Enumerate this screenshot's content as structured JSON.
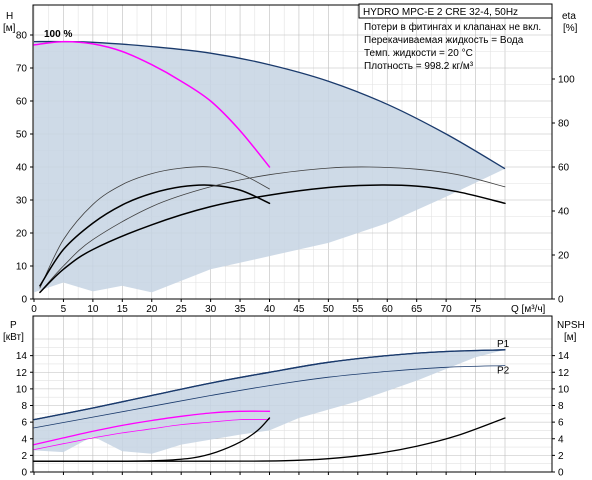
{
  "chart_data": [
    {
      "type": "line",
      "panel": "pump-curves",
      "title_box": "HYDRO MPC-E 2 CRE 32-4, 50Hz",
      "notes": [
        "Потери в фитингах и клапанах не вкл.",
        "Перекачиваемая жидкость = Вода",
        "Темп. жидкости = 20 °C",
        "Плотность = 998.2 кг/м³"
      ],
      "x_axis_label": "Q [м³/ч]",
      "x_ticks": [
        "0",
        "5",
        "10",
        "15",
        "20",
        "25",
        "30",
        "35",
        "40",
        "45",
        "50",
        "55",
        "60",
        "65",
        "70",
        "75"
      ],
      "xlim": [
        0,
        80
      ],
      "y_left": {
        "label_top": "H",
        "label_unit": "[м]",
        "ticks": [
          "0",
          "10",
          "20",
          "30",
          "40",
          "50",
          "60",
          "70",
          "80"
        ],
        "lim": [
          0,
          80
        ]
      },
      "y_right": {
        "label_top": "eta",
        "label_unit": "[%]",
        "ticks": [
          "0",
          "20",
          "40",
          "60",
          "80",
          "100"
        ],
        "lim": [
          0,
          120
        ]
      },
      "annotation_100": "100 %",
      "area_upper": [
        [
          0,
          78
        ],
        [
          5,
          78
        ],
        [
          10,
          77.8
        ],
        [
          20,
          76.5
        ],
        [
          30,
          74.5
        ],
        [
          40,
          71
        ],
        [
          50,
          66
        ],
        [
          60,
          59
        ],
        [
          70,
          50
        ],
        [
          80,
          39.5
        ]
      ],
      "area_lower": [
        [
          0,
          2
        ],
        [
          5,
          5
        ],
        [
          10,
          2.3
        ],
        [
          15,
          4
        ],
        [
          20,
          2
        ],
        [
          30,
          9
        ],
        [
          40,
          13
        ],
        [
          50,
          17
        ],
        [
          60,
          23
        ],
        [
          70,
          31
        ],
        [
          80,
          39.5
        ]
      ],
      "series": [
        {
          "id": "h-single-max",
          "color": "#ff00ff",
          "width": 1.5,
          "points": [
            [
              0,
              77
            ],
            [
              5,
              78
            ],
            [
              10,
              77.3
            ],
            [
              15,
              75
            ],
            [
              20,
              71
            ],
            [
              25,
              66
            ],
            [
              30,
              60
            ],
            [
              35,
              51
            ],
            [
              40,
              40
            ]
          ]
        },
        {
          "id": "eta-single",
          "color": "#404040",
          "width": 0.8,
          "axis": "right",
          "points": [
            [
              1,
              5
            ],
            [
              5,
              27
            ],
            [
              10,
              43
            ],
            [
              15,
              52
            ],
            [
              20,
              57
            ],
            [
              25,
              59.5
            ],
            [
              30,
              60
            ],
            [
              35,
              57
            ],
            [
              40,
              50
            ]
          ]
        },
        {
          "id": "h-single-op",
          "color": "#000000",
          "width": 1.5,
          "points": [
            [
              1,
              4
            ],
            [
              5,
              15
            ],
            [
              10,
              23
            ],
            [
              15,
              28.5
            ],
            [
              20,
              32
            ],
            [
              25,
              34
            ],
            [
              30,
              34.5
            ],
            [
              35,
              33
            ],
            [
              40,
              29
            ]
          ]
        },
        {
          "id": "eta-system",
          "color": "#404040",
          "width": 0.8,
          "axis": "right",
          "points": [
            [
              1,
              3
            ],
            [
              5,
              15
            ],
            [
              10,
              27
            ],
            [
              20,
              42
            ],
            [
              30,
              51
            ],
            [
              40,
              56.5
            ],
            [
              50,
              59.5
            ],
            [
              57,
              60
            ],
            [
              65,
              59
            ],
            [
              72,
              56.5
            ],
            [
              80,
              51
            ]
          ]
        },
        {
          "id": "h-system-op",
          "color": "#000000",
          "width": 1.5,
          "points": [
            [
              1,
              2
            ],
            [
              5,
              9
            ],
            [
              10,
              15
            ],
            [
              20,
              22.5
            ],
            [
              30,
              28
            ],
            [
              40,
              31.5
            ],
            [
              50,
              33.8
            ],
            [
              57,
              34.5
            ],
            [
              65,
              34.2
            ],
            [
              72,
              32.5
            ],
            [
              80,
              29
            ]
          ]
        }
      ]
    },
    {
      "type": "line",
      "panel": "power-npsh",
      "y_left": {
        "label_top": "P",
        "label_unit": "[кВт]",
        "ticks": [
          "0",
          "2",
          "4",
          "6",
          "8",
          "10",
          "12",
          "14"
        ],
        "lim": [
          0,
          16
        ]
      },
      "y_right": {
        "label_top": "NPSH",
        "label_unit": "[м]",
        "ticks": [
          "0",
          "2",
          "4",
          "6",
          "8",
          "10",
          "12",
          "14"
        ],
        "lim": [
          0,
          16
        ]
      },
      "area_upper": [
        [
          0,
          6.3
        ],
        [
          10,
          7.7
        ],
        [
          20,
          9.2
        ],
        [
          30,
          10.7
        ],
        [
          40,
          12
        ],
        [
          50,
          13.2
        ],
        [
          60,
          14
        ],
        [
          70,
          14.5
        ],
        [
          80,
          14.7
        ]
      ],
      "area_lower": [
        [
          0,
          2.6
        ],
        [
          5,
          2.4
        ],
        [
          10,
          4.3
        ],
        [
          15,
          2.5
        ],
        [
          20,
          2.2
        ],
        [
          25,
          3.3
        ],
        [
          35,
          4.5
        ],
        [
          40,
          5
        ],
        [
          45,
          6.5
        ],
        [
          55,
          8.5
        ],
        [
          65,
          11
        ],
        [
          75,
          13.8
        ],
        [
          80,
          14.7
        ]
      ],
      "series": [
        {
          "id": "p1",
          "label": "P1",
          "color": "#1a3a6c",
          "width": 1.3,
          "points": [
            [
              0,
              6.3
            ],
            [
              10,
              7.7
            ],
            [
              20,
              9.2
            ],
            [
              30,
              10.7
            ],
            [
              40,
              12
            ],
            [
              50,
              13.2
            ],
            [
              60,
              14
            ],
            [
              70,
              14.5
            ],
            [
              80,
              14.7
            ]
          ]
        },
        {
          "id": "p2",
          "label": "P2",
          "color": "#1a3a6c",
          "width": 0.8,
          "points": [
            [
              0,
              5.3
            ],
            [
              10,
              6.6
            ],
            [
              20,
              7.9
            ],
            [
              30,
              9.2
            ],
            [
              40,
              10.4
            ],
            [
              50,
              11.4
            ],
            [
              60,
              12.1
            ],
            [
              70,
              12.6
            ],
            [
              80,
              12.8
            ]
          ]
        },
        {
          "id": "p1-single",
          "color": "#ff00ff",
          "width": 1.3,
          "points": [
            [
              0,
              3.3
            ],
            [
              5,
              4.1
            ],
            [
              10,
              4.9
            ],
            [
              15,
              5.6
            ],
            [
              20,
              6.2
            ],
            [
              25,
              6.7
            ],
            [
              30,
              7.1
            ],
            [
              35,
              7.3
            ],
            [
              40,
              7.3
            ]
          ]
        },
        {
          "id": "p2-single",
          "color": "#ff00ff",
          "width": 0.8,
          "points": [
            [
              0,
              2.7
            ],
            [
              5,
              3.4
            ],
            [
              10,
              4.1
            ],
            [
              15,
              4.7
            ],
            [
              20,
              5.2
            ],
            [
              25,
              5.7
            ],
            [
              30,
              6.0
            ],
            [
              35,
              6.3
            ],
            [
              40,
              6.3
            ]
          ]
        },
        {
          "id": "npsh-single",
          "color": "#000000",
          "width": 1.3,
          "points": [
            [
              0,
              1.3
            ],
            [
              15,
              1.3
            ],
            [
              22,
              1.4
            ],
            [
              27,
              1.7
            ],
            [
              31,
              2.4
            ],
            [
              35,
              3.6
            ],
            [
              38,
              5
            ],
            [
              40,
              6.5
            ]
          ]
        },
        {
          "id": "npsh-system",
          "color": "#000000",
          "width": 1.3,
          "points": [
            [
              0,
              1.3
            ],
            [
              30,
              1.3
            ],
            [
              42,
              1.35
            ],
            [
              50,
              1.6
            ],
            [
              58,
              2.2
            ],
            [
              65,
              3.1
            ],
            [
              72,
              4.4
            ],
            [
              80,
              6.5
            ]
          ]
        }
      ]
    }
  ]
}
